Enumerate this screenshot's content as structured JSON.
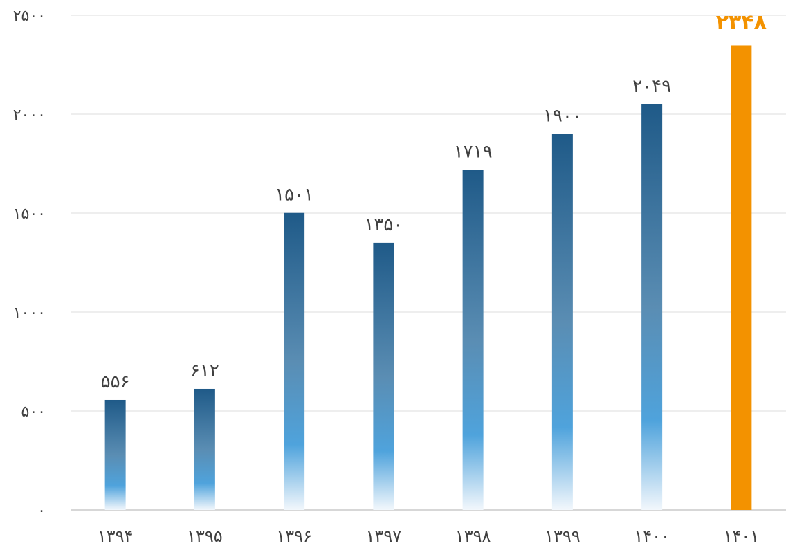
{
  "chart_data": {
    "type": "bar",
    "title": "",
    "xlabel": "",
    "ylabel": "",
    "categories": [
      "۱۳۹۴",
      "۱۳۹۵",
      "۱۳۹۶",
      "۱۳۹۷",
      "۱۳۹۸",
      "۱۳۹۹",
      "۱۴۰۰",
      "۱۴۰۱"
    ],
    "values": [
      556,
      612,
      1501,
      1350,
      1719,
      1900,
      2049,
      2348
    ],
    "value_labels": [
      "۵۵۶",
      "۶۱۲",
      "۱۵۰۱",
      "۱۳۵۰",
      "۱۷۱۹",
      "۱۹۰۰",
      "۲۰۴۹",
      "۲۳۴۸"
    ],
    "ylim": [
      0,
      2500
    ],
    "yticks": [
      0,
      500,
      1000,
      1500,
      2000,
      2500
    ],
    "ytick_labels": [
      "۰",
      "۵۰۰",
      "۱۰۰۰",
      "۱۵۰۰",
      "۲۰۰۰",
      "۲۵۰۰"
    ],
    "grid": true,
    "legend": "none",
    "highlight_index": 7,
    "colors": {
      "bar_top": "#1f5a88",
      "bar_mid": "#4fa3dc",
      "bar_bottom": "#f2f7fc",
      "highlight": "#f39200",
      "text": "#404040",
      "grid": "#dcdcdc"
    }
  }
}
